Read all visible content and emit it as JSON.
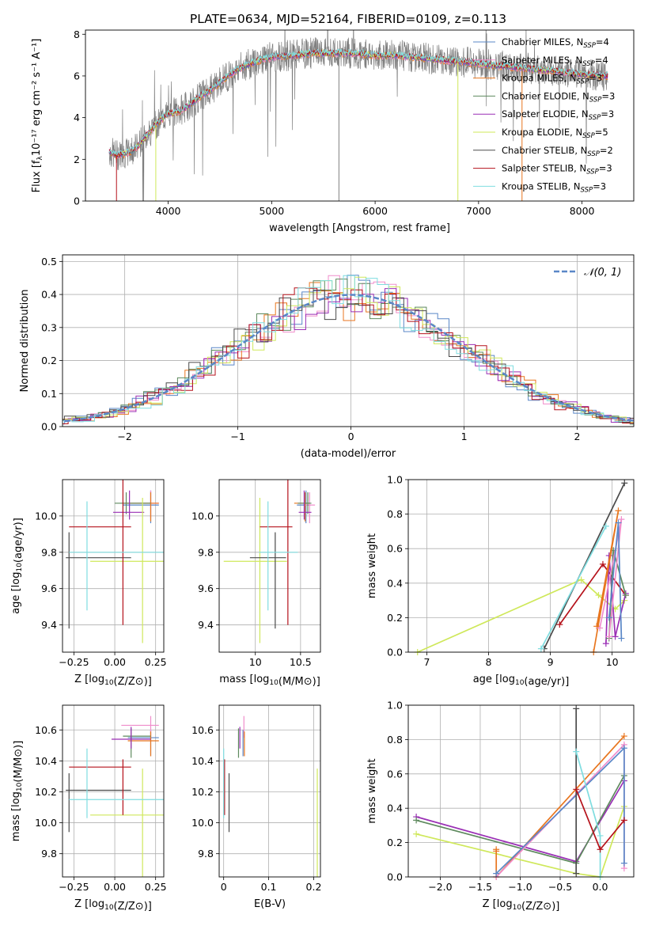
{
  "figure": {
    "title": "PLATE=0634, MJD=52164, FIBERID=0109, z=0.113"
  },
  "colors": {
    "chabrier_miles": "#5a87c7",
    "salpeter_miles": "#f08dcb",
    "kroupa_miles": "#e8761f",
    "chabrier_elodie": "#5e8a5e",
    "salpeter_elodie": "#9a2fb5",
    "kroupa_elodie": "#cfe85a",
    "chabrier_stelib": "#4a4a4a",
    "salpeter_stelib": "#b5121b",
    "kroupa_stelib": "#7fdde0",
    "normal_curve": "#5a87c7",
    "spectrum_data": "#7f7f7f"
  },
  "legend_models": [
    {
      "text": "Chabrier MILES, N",
      "sub": "SSP",
      "tail": "=4",
      "color_key": "chabrier_miles"
    },
    {
      "text": "Salpeter MILES, N",
      "sub": "SSP",
      "tail": "=4",
      "color_key": "salpeter_miles"
    },
    {
      "text": "Kroupa MILES, N",
      "sub": "SSP",
      "tail": "=3",
      "color_key": "kroupa_miles"
    },
    {
      "text": "Chabrier ELODIE, N",
      "sub": "SSP",
      "tail": "=3",
      "color_key": "chabrier_elodie"
    },
    {
      "text": "Salpeter ELODIE, N",
      "sub": "SSP",
      "tail": "=3",
      "color_key": "salpeter_elodie"
    },
    {
      "text": "Kroupa ELODIE, N",
      "sub": "SSP",
      "tail": "=5",
      "color_key": "kroupa_elodie"
    },
    {
      "text": "Chabrier STELIB, N",
      "sub": "SSP",
      "tail": "=2",
      "color_key": "chabrier_stelib"
    },
    {
      "text": "Salpeter STELIB, N",
      "sub": "SSP",
      "tail": "=3",
      "color_key": "salpeter_stelib"
    },
    {
      "text": "Kroupa STELIB, N",
      "sub": "SSP",
      "tail": "=3",
      "color_key": "kroupa_stelib"
    }
  ],
  "chart_data": [
    {
      "id": "spectrum",
      "type": "line",
      "xlabel": "wavelength [Angstrom, rest frame]",
      "ylabel": "Flux [fλ10⁻¹⁷ erg cm⁻² s⁻¹ A⁻¹]",
      "xlim": [
        3200,
        8500
      ],
      "ylim": [
        0,
        8.2
      ],
      "xticks": [
        4000,
        5000,
        6000,
        7000,
        8000
      ],
      "yticks": [
        0,
        2,
        4,
        6,
        8
      ],
      "grid": false,
      "legend_placement": "upper right",
      "continuum": {
        "x": [
          3420,
          3500,
          3600,
          3700,
          3800,
          3900,
          4000,
          4100,
          4200,
          4300,
          4400,
          4500,
          4600,
          4700,
          4800,
          4900,
          5000,
          5200,
          5400,
          5600,
          5800,
          6000,
          6200,
          6400,
          6600,
          6800,
          7000,
          7200,
          7400,
          7600,
          7800,
          8000,
          8250
        ],
        "y": [
          2.4,
          2.2,
          2.3,
          2.6,
          3.2,
          3.8,
          4.2,
          4.3,
          4.6,
          5.0,
          5.3,
          5.7,
          6.1,
          6.4,
          6.6,
          6.8,
          6.9,
          7.0,
          7.1,
          7.1,
          7.1,
          7.0,
          7.0,
          6.9,
          6.8,
          6.7,
          6.6,
          6.5,
          6.4,
          6.3,
          6.2,
          6.1,
          6.0
        ]
      }
    },
    {
      "id": "residuals",
      "type": "line",
      "xlabel": "(data-model)/error",
      "ylabel": "Normed distribution",
      "xlim": [
        -2.55,
        2.5
      ],
      "ylim": [
        0,
        0.52
      ],
      "xticks": [
        -2,
        -1,
        0,
        1,
        2
      ],
      "yticks": [
        0.0,
        0.1,
        0.2,
        0.3,
        0.4,
        0.5
      ],
      "grid": true,
      "legend_placement": "upper right",
      "normal_legend": "𝒩(0, 1)",
      "bin_width": 0.1
    },
    {
      "id": "age_vs_Z",
      "type": "scatter",
      "xlabel": "Z [log10(Z/Z⊙)]",
      "ylabel": "age  [log10(age/yr)]",
      "xlim": [
        -0.32,
        0.3
      ],
      "ylim": [
        9.25,
        10.2
      ],
      "xticks": [
        -0.25,
        0.0,
        0.25
      ],
      "yticks": [
        9.4,
        9.6,
        9.8,
        10.0
      ],
      "grid": true,
      "series": [
        {
          "color_key": "chabrier_miles",
          "x": 0.22,
          "y": 10.06,
          "xerr": [
            0.17,
            0.05
          ],
          "yerr": [
            0.1,
            0.08
          ]
        },
        {
          "color_key": "salpeter_miles",
          "x": 0.22,
          "y": 10.07,
          "xerr": [
            0.17,
            0.05
          ],
          "yerr": [
            0.08,
            0.07
          ]
        },
        {
          "color_key": "kroupa_miles",
          "x": 0.22,
          "y": 10.07,
          "xerr": [
            0.17,
            0.05
          ],
          "yerr": [
            0.1,
            0.06
          ]
        },
        {
          "color_key": "chabrier_elodie",
          "x": 0.07,
          "y": 10.07,
          "xerr": [
            0.07,
            0.15
          ],
          "yerr": [
            0.06,
            0.06
          ]
        },
        {
          "color_key": "salpeter_elodie",
          "x": 0.09,
          "y": 10.02,
          "xerr": [
            0.1,
            0.09
          ],
          "yerr": [
            0.04,
            0.12
          ]
        },
        {
          "color_key": "kroupa_elodie",
          "x": 0.17,
          "y": 9.75,
          "xerr": [
            0.32,
            0.13
          ],
          "yerr": [
            0.45,
            0.35
          ]
        },
        {
          "color_key": "chabrier_stelib",
          "x": -0.28,
          "y": 9.77,
          "xerr": [
            0.02,
            0.38
          ],
          "yerr": [
            0.39,
            0.14
          ]
        },
        {
          "color_key": "salpeter_stelib",
          "x": 0.05,
          "y": 9.94,
          "xerr": [
            0.33,
            0.05
          ],
          "yerr": [
            0.54,
            0.26
          ]
        },
        {
          "color_key": "kroupa_stelib",
          "x": -0.17,
          "y": 9.8,
          "xerr": [
            0.11,
            0.47
          ],
          "yerr": [
            0.32,
            0.28
          ]
        }
      ]
    },
    {
      "id": "age_vs_mass",
      "type": "scatter",
      "xlabel": "mass [log10(M/M⊙)]",
      "ylabel": "",
      "xlim": [
        9.6,
        10.72
      ],
      "ylim": [
        9.25,
        10.2
      ],
      "xticks": [
        10.0,
        10.5
      ],
      "yticks": [
        9.4,
        9.6,
        9.8,
        10.0
      ],
      "grid": true,
      "series": [
        {
          "color_key": "chabrier_miles",
          "x": 10.56,
          "y": 10.06,
          "xerr": [
            0.1,
            0.05
          ],
          "yerr": [
            0.1,
            0.08
          ]
        },
        {
          "color_key": "salpeter_miles",
          "x": 10.6,
          "y": 10.06,
          "xerr": [
            0.06,
            0.06
          ],
          "yerr": [
            0.1,
            0.07
          ]
        },
        {
          "color_key": "kroupa_miles",
          "x": 10.55,
          "y": 10.07,
          "xerr": [
            0.12,
            0.05
          ],
          "yerr": [
            0.1,
            0.06
          ]
        },
        {
          "color_key": "chabrier_elodie",
          "x": 10.58,
          "y": 10.07,
          "xerr": [
            0.11,
            0.04
          ],
          "yerr": [
            0.06,
            0.06
          ]
        },
        {
          "color_key": "salpeter_elodie",
          "x": 10.54,
          "y": 10.02,
          "xerr": [
            0.06,
            0.08
          ],
          "yerr": [
            0.04,
            0.12
          ]
        },
        {
          "color_key": "kroupa_elodie",
          "x": 10.05,
          "y": 9.75,
          "xerr": [
            0.4,
            0.3
          ],
          "yerr": [
            0.45,
            0.35
          ]
        },
        {
          "color_key": "chabrier_stelib",
          "x": 10.22,
          "y": 9.77,
          "xerr": [
            0.28,
            0.12
          ],
          "yerr": [
            0.39,
            0.14
          ]
        },
        {
          "color_key": "salpeter_stelib",
          "x": 10.36,
          "y": 9.94,
          "xerr": [
            0.31,
            0.05
          ],
          "yerr": [
            0.54,
            0.26
          ]
        },
        {
          "color_key": "kroupa_stelib",
          "x": 10.14,
          "y": 9.8,
          "xerr": [
            0.1,
            0.33
          ],
          "yerr": [
            0.32,
            0.28
          ]
        }
      ]
    },
    {
      "id": "mass_weight_vs_age",
      "type": "line",
      "xlabel": "age  [log10(age/yr)]",
      "ylabel": "mass weight",
      "xlim": [
        6.7,
        10.35
      ],
      "ylim": [
        0,
        1.0
      ],
      "xticks": [
        7,
        8,
        9,
        10
      ],
      "yticks": [
        0.0,
        0.2,
        0.4,
        0.6,
        0.8,
        1.0
      ],
      "grid": true,
      "series": [
        {
          "color_key": "kroupa_elodie",
          "x": [
            6.85,
            9.5,
            9.78,
            10.05,
            10.2
          ],
          "y": [
            0.0,
            0.42,
            0.33,
            0.25,
            0.3
          ]
        },
        {
          "color_key": "chabrier_stelib",
          "x": [
            8.9,
            10.2
          ],
          "y": [
            0.02,
            0.98
          ]
        },
        {
          "color_key": "kroupa_stelib",
          "x": [
            8.85,
            9.9
          ],
          "y": [
            0.02,
            0.73
          ]
        },
        {
          "color_key": "salpeter_stelib",
          "x": [
            9.15,
            9.85,
            10.22
          ],
          "y": [
            0.16,
            0.51,
            0.33
          ]
        },
        {
          "color_key": "salpeter_elodie",
          "x": [
            9.9,
            9.95,
            10.05,
            10.22
          ],
          "y": [
            0.05,
            0.56,
            0.09,
            0.34
          ]
        },
        {
          "color_key": "chabrier_elodie",
          "x": [
            9.95,
            10.02,
            10.22
          ],
          "y": [
            0.08,
            0.59,
            0.33
          ]
        },
        {
          "color_key": "kroupa_miles",
          "x": [
            9.7,
            10.1,
            9.75
          ],
          "y": [
            0.0,
            0.82,
            0.15
          ]
        },
        {
          "color_key": "salpeter_miles",
          "x": [
            9.8,
            10.15,
            9.95
          ],
          "y": [
            0.14,
            0.77,
            0.09
          ]
        },
        {
          "color_key": "chabrier_miles",
          "x": [
            9.95,
            10.1,
            10.15
          ],
          "y": [
            0.2,
            0.75,
            0.08
          ]
        }
      ]
    },
    {
      "id": "mass_vs_Z",
      "type": "scatter",
      "xlabel": "Z [log10(Z/Z⊙)]",
      "ylabel": "mass [log10(M/M⊙)]",
      "xlim": [
        -0.32,
        0.3
      ],
      "ylim": [
        9.65,
        10.76
      ],
      "xticks": [
        -0.25,
        0.0,
        0.25
      ],
      "yticks": [
        9.8,
        10.0,
        10.2,
        10.4,
        10.6
      ],
      "grid": true,
      "series": [
        {
          "color_key": "chabrier_miles",
          "x": 0.22,
          "y": 10.55,
          "xerr": [
            0.14,
            0.05
          ],
          "yerr": [
            0.12,
            0.05
          ]
        },
        {
          "color_key": "salpeter_miles",
          "x": 0.22,
          "y": 10.63,
          "xerr": [
            0.18,
            0.05
          ],
          "yerr": [
            0.08,
            0.06
          ]
        },
        {
          "color_key": "kroupa_miles",
          "x": 0.22,
          "y": 10.53,
          "xerr": [
            0.14,
            0.05
          ],
          "yerr": [
            0.1,
            0.06
          ]
        },
        {
          "color_key": "chabrier_elodie",
          "x": 0.1,
          "y": 10.56,
          "xerr": [
            0.05,
            0.12
          ],
          "yerr": [
            0.14,
            0.05
          ]
        },
        {
          "color_key": "salpeter_elodie",
          "x": 0.1,
          "y": 10.54,
          "xerr": [
            0.12,
            0.12
          ],
          "yerr": [
            0.06,
            0.08
          ]
        },
        {
          "color_key": "kroupa_elodie",
          "x": 0.17,
          "y": 10.05,
          "xerr": [
            0.32,
            0.13
          ],
          "yerr": [
            0.4,
            0.3
          ]
        },
        {
          "color_key": "chabrier_stelib",
          "x": -0.28,
          "y": 10.21,
          "xerr": [
            0.02,
            0.38
          ],
          "yerr": [
            0.27,
            0.11
          ]
        },
        {
          "color_key": "salpeter_stelib",
          "x": 0.05,
          "y": 10.36,
          "xerr": [
            0.33,
            0.05
          ],
          "yerr": [
            0.31,
            0.05
          ]
        },
        {
          "color_key": "kroupa_stelib",
          "x": -0.17,
          "y": 10.15,
          "xerr": [
            0.11,
            0.47
          ],
          "yerr": [
            0.12,
            0.33
          ]
        }
      ]
    },
    {
      "id": "mass_vs_ebv",
      "type": "scatter",
      "xlabel": "E(B-V)",
      "ylabel": "",
      "xlim": [
        -0.01,
        0.215
      ],
      "ylim": [
        9.65,
        10.76
      ],
      "xticks": [
        0.0,
        0.1,
        0.2
      ],
      "yticks": [
        9.8,
        10.0,
        10.2,
        10.4,
        10.6
      ],
      "grid": true,
      "series": [
        {
          "color_key": "chabrier_miles",
          "x": 0.043,
          "y": 10.55,
          "yerr": [
            0.12,
            0.05
          ]
        },
        {
          "color_key": "salpeter_miles",
          "x": 0.045,
          "y": 10.63,
          "yerr": [
            0.08,
            0.06
          ]
        },
        {
          "color_key": "kroupa_miles",
          "x": 0.046,
          "y": 10.53,
          "yerr": [
            0.1,
            0.06
          ]
        },
        {
          "color_key": "chabrier_elodie",
          "x": 0.033,
          "y": 10.56,
          "yerr": [
            0.14,
            0.05
          ]
        },
        {
          "color_key": "salpeter_elodie",
          "x": 0.036,
          "y": 10.54,
          "yerr": [
            0.06,
            0.08
          ]
        },
        {
          "color_key": "kroupa_elodie",
          "x": 0.208,
          "y": 10.05,
          "yerr": [
            0.4,
            0.3
          ]
        },
        {
          "color_key": "chabrier_stelib",
          "x": 0.012,
          "y": 10.21,
          "yerr": [
            0.27,
            0.11
          ]
        },
        {
          "color_key": "salpeter_stelib",
          "x": 0.002,
          "y": 10.36,
          "yerr": [
            0.31,
            0.05
          ]
        },
        {
          "color_key": "kroupa_stelib",
          "x": 0.0,
          "y": 10.15,
          "yerr": [
            0.12,
            0.33
          ]
        }
      ]
    },
    {
      "id": "mass_weight_vs_Z",
      "type": "line",
      "xlabel": "Z [log10(Z/Z⊙)]",
      "ylabel": "mass weight",
      "xlim": [
        -2.4,
        0.42
      ],
      "ylim": [
        0,
        1.0
      ],
      "xticks": [
        -2.0,
        -1.5,
        -1.0,
        -0.5,
        0.0
      ],
      "yticks": [
        0.0,
        0.2,
        0.4,
        0.6,
        0.8,
        1.0
      ],
      "grid": true,
      "series": [
        {
          "color_key": "salpeter_elodie",
          "x": [
            -2.3,
            -0.3,
            0.3
          ],
          "y": [
            0.35,
            0.09,
            0.56
          ]
        },
        {
          "color_key": "chabrier_elodie",
          "x": [
            -2.3,
            -0.3,
            0.3
          ],
          "y": [
            0.33,
            0.08,
            0.59
          ]
        },
        {
          "color_key": "kroupa_elodie",
          "x": [
            -2.3,
            -0.3,
            0.0,
            0.3
          ],
          "y": [
            0.25,
            0.02,
            0.0,
            0.41
          ]
        },
        {
          "color_key": "kroupa_miles",
          "x": [
            -1.3,
            -1.3,
            -1.3,
            0.3
          ],
          "y": [
            0.16,
            0.15,
            0.0,
            0.82
          ]
        },
        {
          "color_key": "salpeter_miles",
          "x": [
            -1.3,
            0.3,
            0.3
          ],
          "y": [
            0.0,
            0.77,
            0.05
          ]
        },
        {
          "color_key": "chabrier_miles",
          "x": [
            -1.3,
            0.3,
            0.3
          ],
          "y": [
            0.02,
            0.75,
            0.08
          ]
        },
        {
          "color_key": "chabrier_stelib",
          "x": [
            -0.3,
            -0.3
          ],
          "y": [
            0.02,
            0.98
          ]
        },
        {
          "color_key": "kroupa_stelib",
          "x": [
            -0.3,
            0.0,
            0.0
          ],
          "y": [
            0.73,
            0.24,
            0.0
          ]
        },
        {
          "color_key": "salpeter_stelib",
          "x": [
            -0.3,
            0.0,
            0.3
          ],
          "y": [
            0.51,
            0.16,
            0.33
          ]
        }
      ]
    }
  ]
}
